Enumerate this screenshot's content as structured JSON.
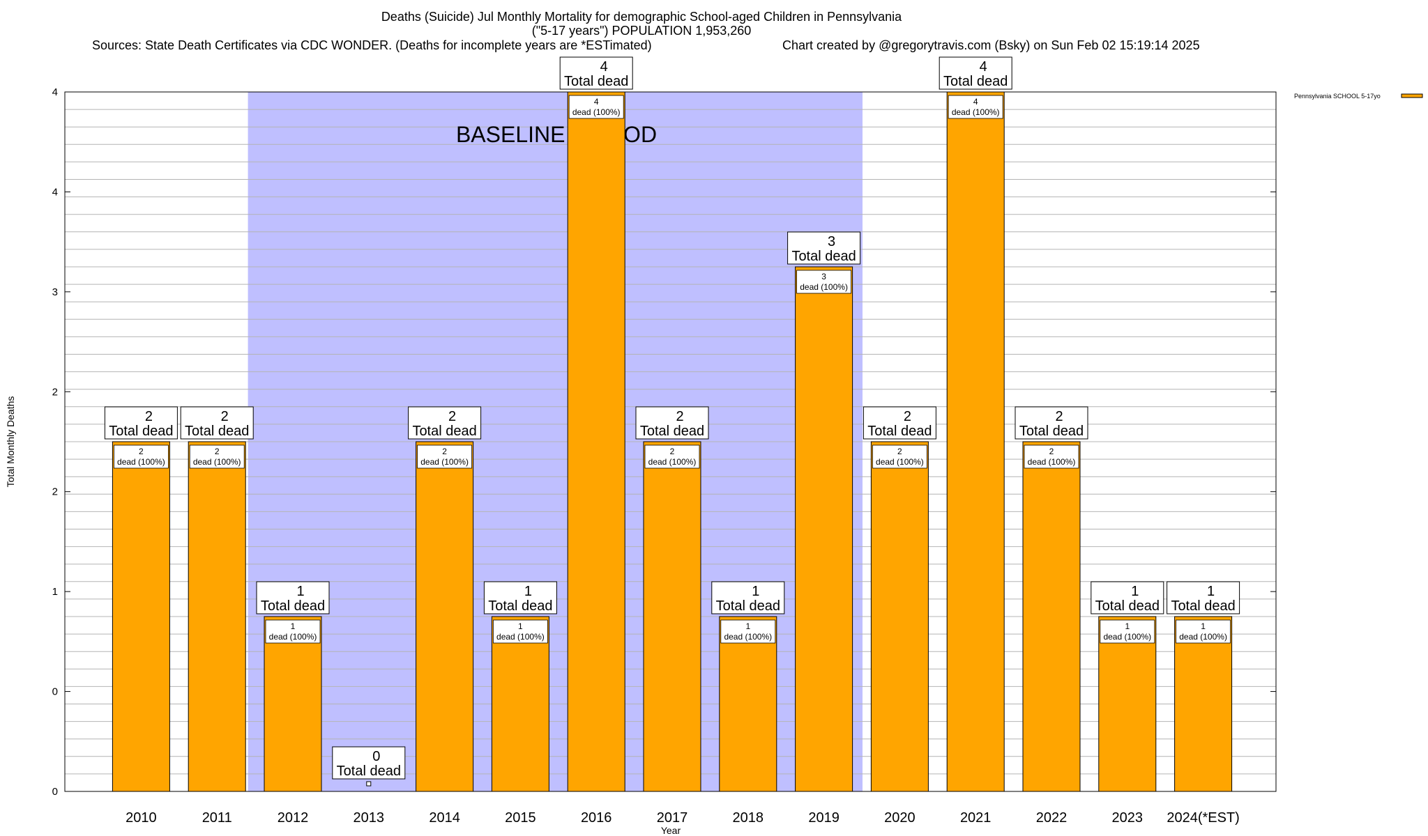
{
  "header": {
    "title_line1": "Deaths (Suicide) Jul Monthly Mortality for demographic School-aged Children in Pennsylvania",
    "title_line2": "(\"5-17 years\") POPULATION 1,953,260",
    "sources": "Sources: State Death Certificates via CDC WONDER. (Deaths for incomplete years are *ESTimated)",
    "credit": "Chart created by @gregorytravis.com (Bsky) on Sun Feb 02 15:19:14 2025"
  },
  "chart_data": {
    "type": "bar",
    "title": "Deaths (Suicide) Jul Monthly Mortality for demographic School-aged Children in Pennsylvania",
    "xlabel": "Year",
    "ylabel": "Total Monthly Deaths",
    "ylim": [
      0,
      4
    ],
    "y_tick_labels": [
      "0",
      "0",
      "1",
      "2",
      "2",
      "3",
      "4",
      "4"
    ],
    "grid": true,
    "categories": [
      "2010",
      "2011",
      "2012",
      "2013",
      "2014",
      "2015",
      "2016",
      "2017",
      "2018",
      "2019",
      "2020",
      "2021",
      "2022",
      "2023",
      "2024(*EST)"
    ],
    "series": [
      {
        "name": "Pennsylvania SCHOOL 5-17yo",
        "color": "#FFA500",
        "values": [
          2,
          2,
          1,
          0,
          2,
          1,
          4,
          2,
          1,
          3,
          2,
          4,
          2,
          1,
          1
        ]
      }
    ],
    "total_label_suffix": "Total dead",
    "inner_label_suffix": "dead (100%)",
    "baseline_period": {
      "label": "BASELINE PERIOD",
      "from": "2012",
      "to": "2019",
      "color": "#BFBFFF"
    },
    "legend_position": "top-right"
  }
}
